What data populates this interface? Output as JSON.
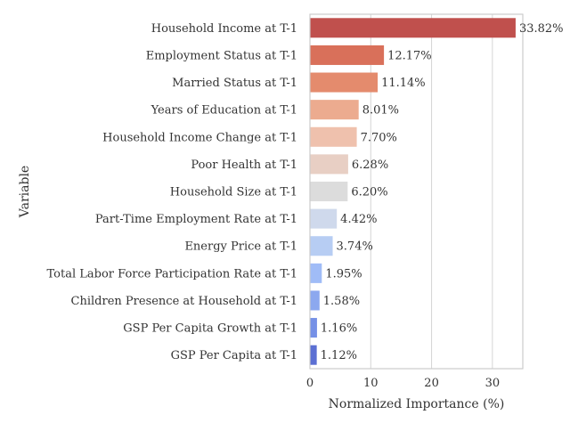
{
  "chart_data": {
    "type": "bar",
    "orientation": "horizontal",
    "title": "",
    "xlabel": "Normalized Importance (%)",
    "ylabel": "Variable",
    "xlim": [
      0,
      35
    ],
    "xticks": [
      "0",
      "10",
      "20",
      "30"
    ],
    "grid": "vertical",
    "categories": [
      "Household Income at T-1",
      "Employment Status at T-1",
      "Married Status at T-1",
      "Years of Education at T-1",
      "Household Income Change at T-1",
      "Poor Health at T-1",
      "Household Size at T-1",
      "Part-Time Employment Rate at T-1",
      "Energy Price at T-1",
      "Total Labor Force Participation Rate at T-1",
      "Children Presence at Household at T-1",
      "GSP Per Capita Growth at T-1",
      "GSP Per Capita at T-1"
    ],
    "values": [
      33.82,
      12.17,
      11.14,
      8.01,
      7.7,
      6.28,
      6.2,
      4.42,
      3.74,
      1.95,
      1.58,
      1.16,
      1.12
    ],
    "value_labels": [
      "33.82%",
      "12.17%",
      "11.14%",
      "8.01%",
      "7.70%",
      "6.28%",
      "6.20%",
      "4.42%",
      "3.74%",
      "1.95%",
      "1.58%",
      "1.16%",
      "1.12%"
    ],
    "colors": [
      "#c0504d",
      "#d9705a",
      "#e48b6d",
      "#ecab8f",
      "#efc1ad",
      "#e8cfc4",
      "#dcdcdc",
      "#cfd9ec",
      "#b7cdf3",
      "#a0bcf7",
      "#8ca8ef",
      "#7590e6",
      "#5b6fd3"
    ]
  }
}
